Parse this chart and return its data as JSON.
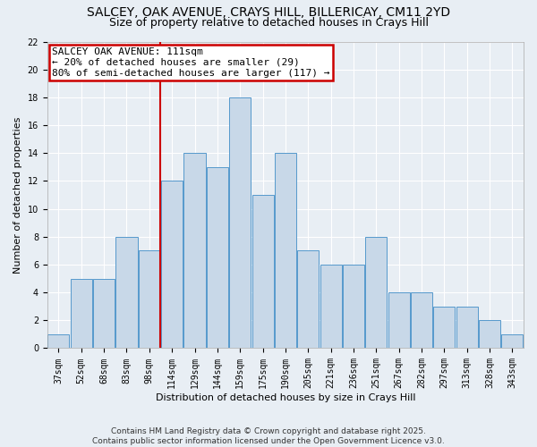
{
  "title1": "SALCEY, OAK AVENUE, CRAYS HILL, BILLERICAY, CM11 2YD",
  "title2": "Size of property relative to detached houses in Crays Hill",
  "xlabel": "Distribution of detached houses by size in Crays Hill",
  "ylabel": "Number of detached properties",
  "bins": [
    37,
    52,
    68,
    83,
    98,
    114,
    129,
    144,
    159,
    175,
    190,
    205,
    221,
    236,
    251,
    267,
    282,
    297,
    313,
    328,
    343
  ],
  "counts": [
    1,
    5,
    5,
    8,
    7,
    12,
    14,
    13,
    18,
    11,
    14,
    7,
    6,
    6,
    8,
    4,
    4,
    3,
    3,
    2,
    1
  ],
  "bar_color": "#c8d8e8",
  "bar_edge_color": "#5599cc",
  "red_line_bin_index": 5,
  "annotation_line1": "SALCEY OAK AVENUE: 111sqm",
  "annotation_line2": "← 20% of detached houses are smaller (29)",
  "annotation_line3": "80% of semi-detached houses are larger (117) →",
  "annotation_box_color": "#ffffff",
  "annotation_border_color": "#cc0000",
  "red_line_color": "#cc0000",
  "ylim": [
    0,
    22
  ],
  "yticks": [
    0,
    2,
    4,
    6,
    8,
    10,
    12,
    14,
    16,
    18,
    20,
    22
  ],
  "background_color": "#e8eef4",
  "grid_color": "#ffffff",
  "footer_line1": "Contains HM Land Registry data © Crown copyright and database right 2025.",
  "footer_line2": "Contains public sector information licensed under the Open Government Licence v3.0.",
  "title_fontsize": 10,
  "subtitle_fontsize": 9,
  "annotation_fontsize": 8,
  "axis_fontsize": 8,
  "tick_fontsize": 7
}
